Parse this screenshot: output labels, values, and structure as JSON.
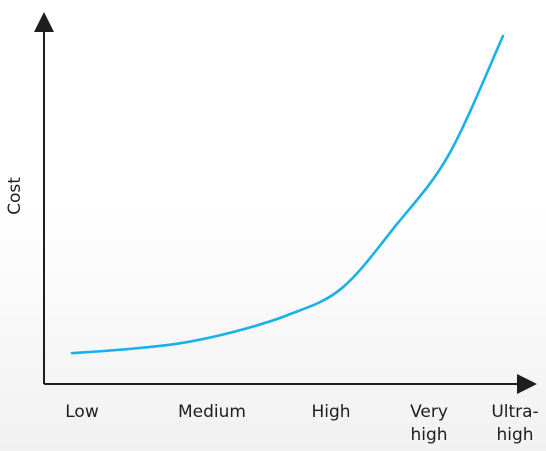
{
  "chart_data": {
    "type": "line",
    "title": "",
    "xlabel": "",
    "ylabel": "Cost",
    "categories": [
      "Low",
      "Medium",
      "High",
      "Very high",
      "Ultra-high"
    ],
    "tick_lines": [
      [
        "Low"
      ],
      [
        "Medium"
      ],
      [
        "High"
      ],
      [
        "Very",
        "high"
      ],
      [
        "Ultra-",
        "high"
      ]
    ],
    "series": [
      {
        "color": "#1ab0e8",
        "x": [
          0.0,
          0.5,
          1.0,
          1.5,
          2.0,
          2.5,
          3.0,
          3.5,
          4.0
        ],
        "y": [
          3.3,
          4.5,
          6.3,
          9.8,
          14.9,
          23.0,
          42.0,
          64.0,
          100.0
        ]
      }
    ],
    "xlim": [
      0,
      4
    ],
    "ylim": [
      0,
      100
    ],
    "grid": false,
    "legend": "none"
  }
}
